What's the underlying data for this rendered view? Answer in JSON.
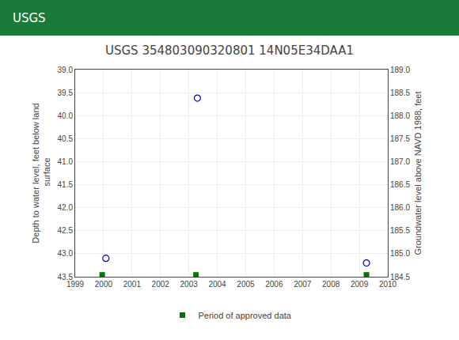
{
  "chart_data": {
    "type": "scatter",
    "title": "USGS 354803090320801 14N05E34DAA1",
    "annotations": [
      {
        "text": "USGS"
      }
    ],
    "ylabel": "Depth to water level, feet below land\n surface",
    "y2label": "Groundwater level above NAVD 1988, feet",
    "xlim": [
      1999,
      2010
    ],
    "xticks": [
      1999,
      2000,
      2001,
      2002,
      2003,
      2004,
      2005,
      2006,
      2007,
      2008,
      2009,
      2010
    ],
    "ylim": [
      43.5,
      39.0
    ],
    "yticks": [
      {
        "value": 39.0,
        "label": "39.0"
      },
      39.5,
      {
        "value": 40.0,
        "label": "40.0"
      },
      40.5,
      {
        "value": 41.0,
        "label": "41.0"
      },
      41.5,
      {
        "value": 42.0,
        "label": "42.0"
      },
      42.5,
      {
        "value": 43.0,
        "label": "43.0"
      },
      43.5
    ],
    "y2lim": [
      184.5,
      189.0
    ],
    "y2ticks": [
      184.5,
      {
        "value": 185.0,
        "label": "185.0"
      },
      185.5,
      {
        "value": 186.0,
        "label": "186.0"
      },
      186.5,
      {
        "value": 187.0,
        "label": "187.0"
      },
      187.5,
      {
        "value": 188.0,
        "label": "188.0"
      },
      188.5,
      {
        "value": 189.0,
        "label": "189.0"
      }
    ],
    "grid": true,
    "legend": "bottom",
    "series": [
      {
        "color": "#0000bb",
        "marker": "circle-open",
        "x": [
          2000.08,
          2003.3,
          2009.25
        ],
        "values": [
          43.1,
          39.62,
          43.2
        ]
      },
      {
        "name": "Period of approved data",
        "color": "#007700",
        "marker": "square",
        "x": [
          1999.95,
          2003.25,
          2009.25
        ],
        "values": [
          43.46,
          43.46,
          43.46
        ]
      }
    ]
  }
}
